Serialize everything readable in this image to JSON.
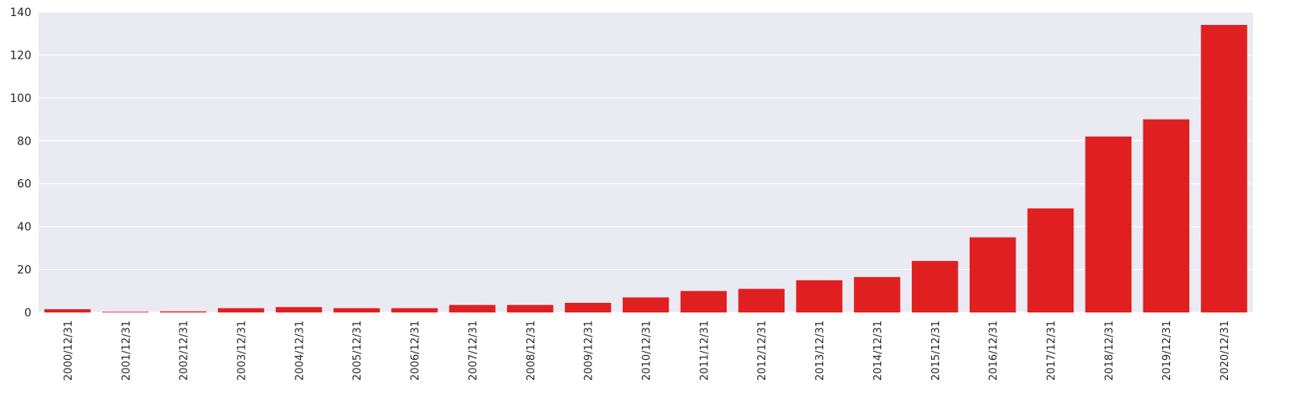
{
  "chart_data": {
    "type": "bar",
    "categories": [
      "2000/12/31",
      "2001/12/31",
      "2002/12/31",
      "2003/12/31",
      "2004/12/31",
      "2005/12/31",
      "2006/12/31",
      "2007/12/31",
      "2008/12/31",
      "2009/12/31",
      "2010/12/31",
      "2011/12/31",
      "2012/12/31",
      "2013/12/31",
      "2014/12/31",
      "2015/12/31",
      "2016/12/31",
      "2017/12/31",
      "2018/12/31",
      "2019/12/31",
      "2020/12/31"
    ],
    "values": [
      1.5,
      0.3,
      0.5,
      2,
      2.5,
      2,
      2,
      3.5,
      3.5,
      4.5,
      7,
      10,
      11,
      15,
      16.5,
      24,
      35,
      48.5,
      82,
      90,
      134
    ],
    "title": "",
    "xlabel": "",
    "ylabel": "",
    "ylim": [
      0,
      140
    ],
    "yticks": [
      0,
      20,
      40,
      60,
      80,
      100,
      120,
      140
    ],
    "grid": true,
    "bar_color": "#e02020",
    "background_color": "#eaeaf2",
    "grid_color": "#ffffff"
  }
}
